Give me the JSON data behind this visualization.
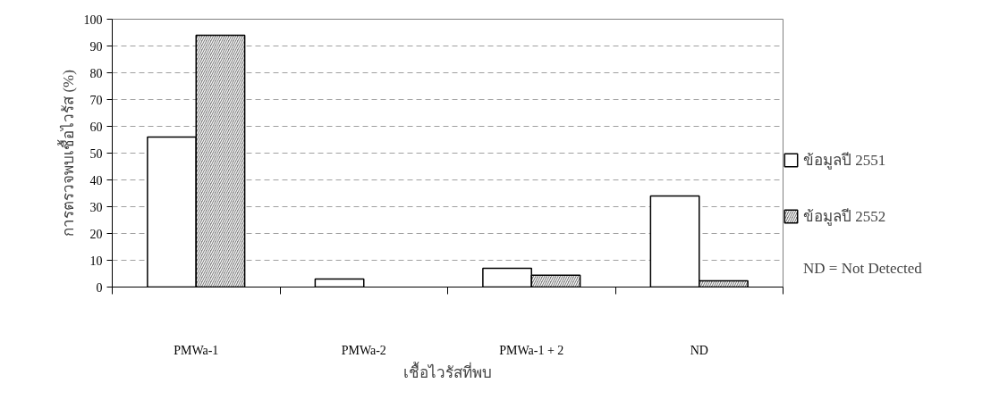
{
  "chart_data": {
    "type": "bar",
    "xlabel": "เชื้อไวรัสที่พบ",
    "ylabel": "การตรวจพบเชื้อไวรัส (%)",
    "categories": [
      "PMWa-1",
      "PMWa-2",
      "PMWa-1 + 2",
      "ND"
    ],
    "series": [
      {
        "name": "ข้อมูลปี 2551",
        "color": "#ffffff",
        "values": [
          56,
          3,
          7,
          34
        ]
      },
      {
        "name": "ข้อมูลปี 2552",
        "color": "#808080",
        "values": [
          94,
          0,
          4.4,
          2.3
        ]
      }
    ],
    "ylim": [
      0,
      100
    ],
    "yticks": [
      0,
      10,
      20,
      30,
      40,
      50,
      60,
      70,
      80,
      90,
      100
    ],
    "grid": "y",
    "legend": "right",
    "annotations": [
      "ND = Not Detected"
    ]
  }
}
